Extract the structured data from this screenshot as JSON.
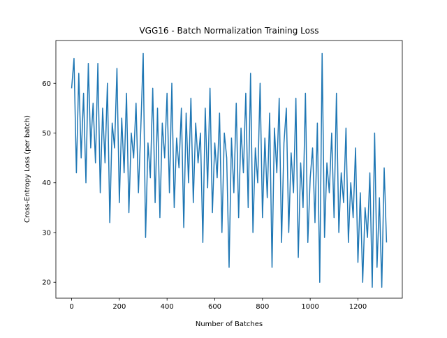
{
  "chart_data": {
    "type": "line",
    "title": "VGG16 - Batch Normalization Training Loss",
    "x_label": "Number of Batches",
    "y_label": "Cross-Entropy Loss (per batch)",
    "color": "#1f77b4",
    "grid": false,
    "xlim": [
      -66,
      1386
    ],
    "xticks": [
      0,
      200,
      400,
      600,
      800,
      1000,
      1200
    ],
    "ylim": [
      16.8,
      68.6
    ],
    "yticks": [
      20,
      30,
      40,
      50,
      60
    ],
    "x": [
      0,
      10,
      20,
      30,
      40,
      50,
      60,
      70,
      80,
      90,
      100,
      110,
      120,
      130,
      140,
      150,
      160,
      170,
      180,
      190,
      200,
      210,
      220,
      230,
      240,
      250,
      260,
      270,
      280,
      290,
      300,
      310,
      320,
      330,
      340,
      350,
      360,
      370,
      380,
      390,
      400,
      410,
      420,
      430,
      440,
      450,
      460,
      470,
      480,
      490,
      500,
      510,
      520,
      530,
      540,
      550,
      560,
      570,
      580,
      590,
      600,
      610,
      620,
      630,
      640,
      650,
      660,
      670,
      680,
      690,
      700,
      710,
      720,
      730,
      740,
      750,
      760,
      770,
      780,
      790,
      800,
      810,
      820,
      830,
      840,
      850,
      860,
      870,
      880,
      890,
      900,
      910,
      920,
      930,
      940,
      950,
      960,
      970,
      980,
      990,
      1000,
      1010,
      1020,
      1030,
      1040,
      1050,
      1060,
      1070,
      1080,
      1090,
      1100,
      1110,
      1120,
      1130,
      1140,
      1150,
      1160,
      1170,
      1180,
      1190,
      1200,
      1210,
      1220,
      1230,
      1240,
      1250,
      1260,
      1270,
      1280,
      1290,
      1300,
      1310,
      1320
    ],
    "values": [
      59,
      65,
      42,
      62,
      45,
      58,
      40,
      64,
      47,
      56,
      44,
      64,
      38,
      55,
      44,
      60,
      32,
      52,
      47,
      63,
      36,
      53,
      42,
      58,
      34,
      50,
      45,
      56,
      38,
      51,
      66,
      29,
      48,
      41,
      59,
      36,
      55,
      33,
      52,
      45,
      58,
      38,
      60,
      35,
      49,
      43,
      55,
      31,
      54,
      40,
      57,
      36,
      52,
      44,
      50,
      28,
      55,
      39,
      59,
      34,
      48,
      41,
      54,
      30,
      50,
      45,
      23,
      49,
      38,
      56,
      33,
      51,
      42,
      58,
      35,
      62,
      30,
      47,
      40,
      60,
      33,
      49,
      37,
      54,
      23,
      51,
      42,
      57,
      28,
      48,
      55,
      30,
      46,
      38,
      57,
      25,
      44,
      35,
      58,
      28,
      41,
      47,
      32,
      52,
      20,
      66,
      29,
      44,
      38,
      50,
      33,
      58,
      30,
      42,
      36,
      51,
      28,
      40,
      33,
      47,
      24,
      38,
      20,
      35,
      29,
      42,
      19,
      50,
      23,
      37,
      19,
      43,
      28
    ]
  }
}
